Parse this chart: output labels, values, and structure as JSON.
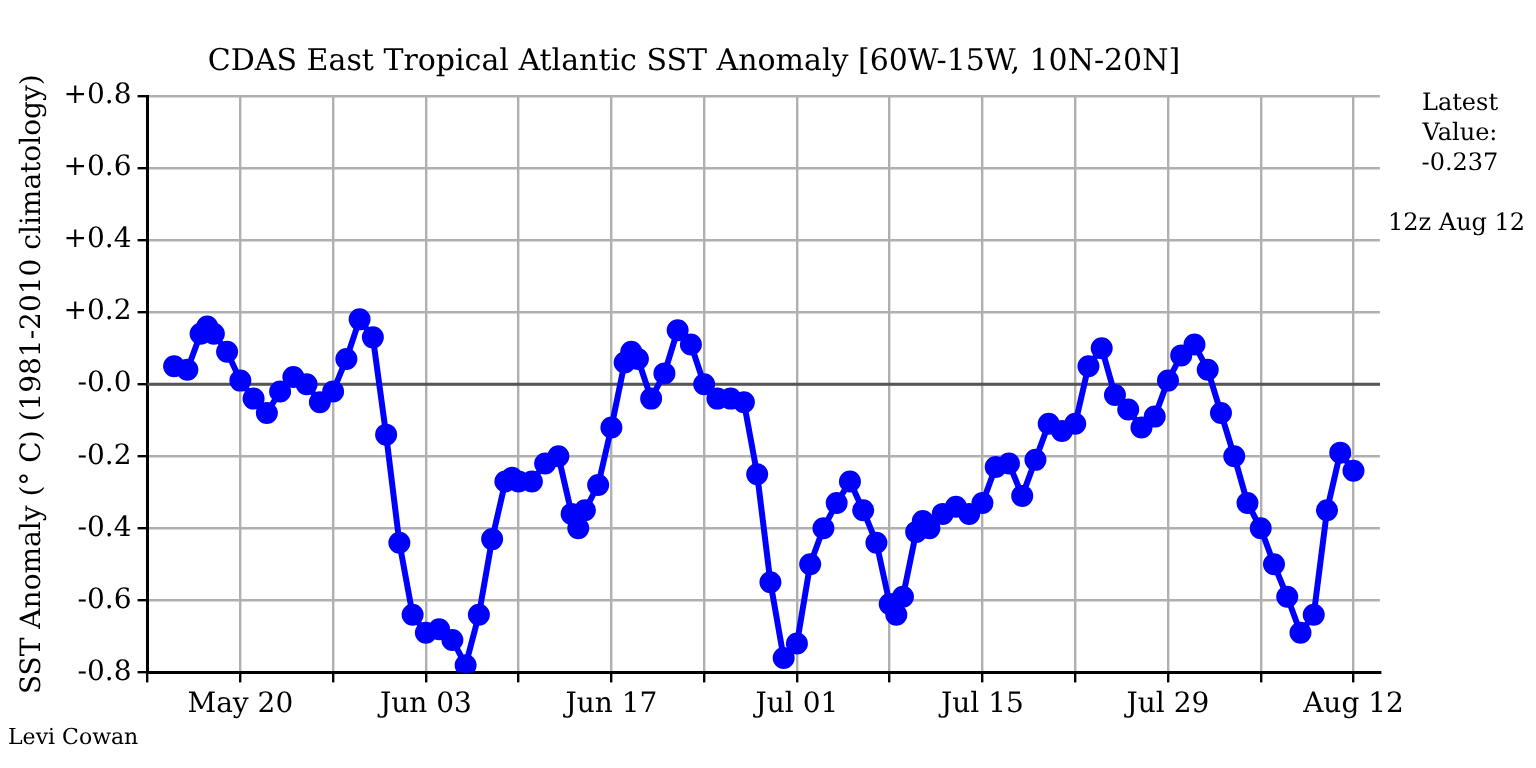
{
  "chart_data": {
    "type": "line",
    "title": "CDAS East Tropical Atlantic SST Anomaly [60W-15W, 10N-20N]",
    "ylabel": "SST Anomaly (° C) (1981-2010 climatology)",
    "annotations": [
      "Latest Value: -0.237",
      "12z Aug 12",
      "Levi Cowan"
    ],
    "x": [
      "--05-15",
      "--05-16",
      "--05-17",
      "--05-17T12:00",
      "--05-18",
      "--05-19",
      "--05-20",
      "--05-21",
      "--05-22",
      "--05-23",
      "--05-24",
      "--05-25",
      "--05-26",
      "--05-27",
      "--05-28",
      "--05-29",
      "--05-30",
      "--05-31",
      "--06-01",
      "--06-02",
      "--06-03",
      "--06-04",
      "--06-05",
      "--06-06",
      "--06-07",
      "--06-08",
      "--06-09",
      "--06-09T12:00",
      "--06-10",
      "--06-11",
      "--06-12",
      "--06-13",
      "--06-14",
      "--06-14T12:00",
      "--06-15",
      "--06-16",
      "--06-17",
      "--06-18",
      "--06-18T12:00",
      "--06-19",
      "--06-20",
      "--06-21",
      "--06-22",
      "--06-23",
      "--06-24",
      "--06-25",
      "--06-26",
      "--06-27",
      "--06-28",
      "--06-29",
      "--06-30",
      "--07-01",
      "--07-02",
      "--07-03",
      "--07-04",
      "--07-05",
      "--07-06",
      "--07-07",
      "--07-08",
      "--07-08T12:00",
      "--07-09",
      "--07-10",
      "--07-10T12:00",
      "--07-11",
      "--07-12",
      "--07-13",
      "--07-14",
      "--07-15",
      "--07-16",
      "--07-17",
      "--07-18",
      "--07-19",
      "--07-20",
      "--07-21",
      "--07-22",
      "--07-23",
      "--07-24",
      "--07-25",
      "--07-26",
      "--07-27",
      "--07-28",
      "--07-29",
      "--07-30",
      "--07-31",
      "--08-01",
      "--08-02",
      "--08-03",
      "--08-04",
      "--08-05",
      "--08-06",
      "--08-07",
      "--08-08",
      "--08-09",
      "--08-10",
      "--08-11",
      "--08-12"
    ],
    "values": [
      0.05,
      0.04,
      0.14,
      0.16,
      0.14,
      0.09,
      0.01,
      -0.04,
      -0.08,
      -0.02,
      0.02,
      0.0,
      -0.05,
      -0.02,
      0.07,
      0.18,
      0.13,
      -0.14,
      -0.44,
      -0.64,
      -0.69,
      -0.68,
      -0.71,
      -0.78,
      -0.64,
      -0.43,
      -0.27,
      -0.26,
      -0.27,
      -0.27,
      -0.22,
      -0.2,
      -0.36,
      -0.4,
      -0.35,
      -0.28,
      -0.12,
      0.06,
      0.09,
      0.07,
      -0.04,
      0.03,
      0.15,
      0.11,
      0.0,
      -0.04,
      -0.04,
      -0.05,
      -0.25,
      -0.55,
      -0.76,
      -0.72,
      -0.5,
      -0.4,
      -0.33,
      -0.27,
      -0.35,
      -0.44,
      -0.61,
      -0.64,
      -0.59,
      -0.41,
      -0.38,
      -0.4,
      -0.36,
      -0.34,
      -0.36,
      -0.33,
      -0.23,
      -0.22,
      -0.31,
      -0.21,
      -0.11,
      -0.13,
      -0.11,
      0.05,
      0.1,
      -0.03,
      -0.07,
      -0.12,
      -0.09,
      0.01,
      0.08,
      0.11,
      0.04,
      -0.08,
      -0.2,
      -0.33,
      -0.4,
      -0.5,
      -0.59,
      -0.69,
      -0.64,
      -0.35,
      -0.19,
      -0.24
    ],
    "color": "#0000ff",
    "marker": "circle",
    "line_style": "solid",
    "grid": true,
    "xlim": [
      "--05-13",
      "--08-14"
    ],
    "xticks": [
      {
        "value": "--05-13",
        "label": null
      },
      {
        "value": "--05-20",
        "label": "May 20"
      },
      {
        "value": "--05-27",
        "label": null
      },
      {
        "value": "--06-03",
        "label": "Jun 03"
      },
      {
        "value": "--06-10",
        "label": null
      },
      {
        "value": "--06-17",
        "label": "Jun 17"
      },
      {
        "value": "--06-24",
        "label": null
      },
      {
        "value": "--07-01",
        "label": "Jul 01"
      },
      {
        "value": "--07-08",
        "label": null
      },
      {
        "value": "--07-15",
        "label": "Jul 15"
      },
      {
        "value": "--07-22",
        "label": null
      },
      {
        "value": "--07-29",
        "label": "Jul 29"
      },
      {
        "value": "--08-05",
        "label": null
      },
      {
        "value": "--08-12",
        "label": "Aug 12"
      }
    ],
    "ylim": [
      -0.8,
      0.8
    ],
    "yticks": [
      {
        "value": -0.8,
        "label": "-0.8"
      },
      {
        "value": -0.6,
        "label": "-0.6"
      },
      {
        "value": -0.4,
        "label": "-0.4"
      },
      {
        "value": -0.2,
        "label": "-0.2"
      },
      {
        "value": 0,
        "label": "-0.0"
      },
      {
        "value": 0.2,
        "label": "+0.2"
      },
      {
        "value": 0.4,
        "label": "+0.4"
      },
      {
        "value": 0.6,
        "label": "+0.6"
      },
      {
        "value": 0.8,
        "label": "+0.8"
      }
    ],
    "ref_lines": [
      {
        "axis": "y",
        "value": 0,
        "color": "#555555"
      }
    ]
  }
}
